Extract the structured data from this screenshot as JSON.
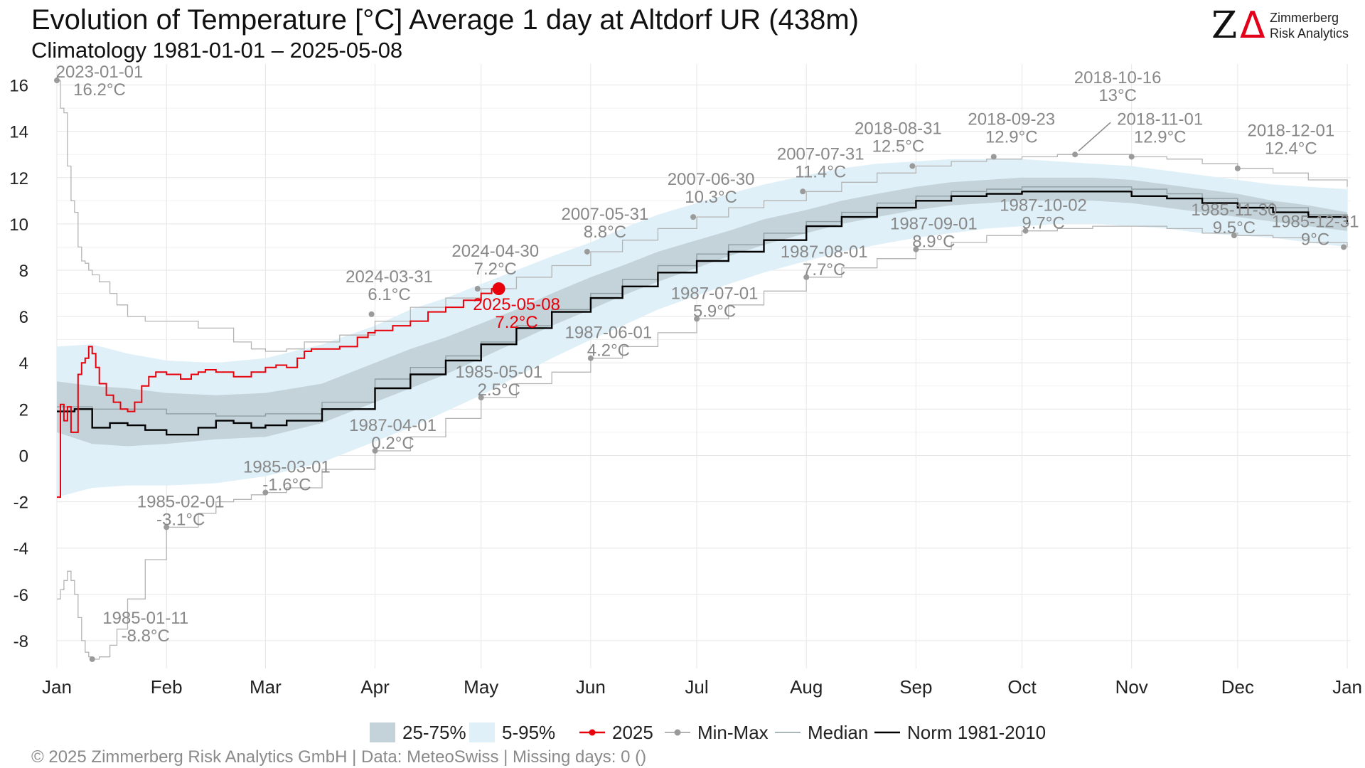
{
  "chart_data": {
    "type": "line",
    "title": "Evolution of Temperature [°C] Average 1 day at Altdorf  UR (438m)",
    "subtitle": "Climatology 1981-01-01 – 2025-05-08",
    "ylim": [
      -9.2,
      16.6
    ],
    "xlim": [
      0,
      366
    ],
    "y_ticks": [
      -8,
      -6,
      -4,
      -2,
      0,
      2,
      4,
      6,
      8,
      10,
      12,
      14,
      16
    ],
    "x_ticks": [
      {
        "label": "Jan",
        "day": 0
      },
      {
        "label": "Feb",
        "day": 31
      },
      {
        "label": "Mar",
        "day": 59
      },
      {
        "label": "Apr",
        "day": 90
      },
      {
        "label": "May",
        "day": 120
      },
      {
        "label": "Jun",
        "day": 151
      },
      {
        "label": "Jul",
        "day": 181
      },
      {
        "label": "Aug",
        "day": 212
      },
      {
        "label": "Sep",
        "day": 243
      },
      {
        "label": "Oct",
        "day": 273
      },
      {
        "label": "Nov",
        "day": 304
      },
      {
        "label": "Dec",
        "day": 334
      },
      {
        "label": "Jan",
        "day": 365
      }
    ],
    "grid": true,
    "legend_position": "bottom",
    "series": [
      {
        "name": "Norm 1981-2010",
        "x": [
          0,
          5,
          10,
          15,
          20,
          25,
          31,
          40,
          45,
          50,
          55,
          59,
          65,
          75,
          90,
          100,
          110,
          120,
          130,
          140,
          151,
          160,
          170,
          181,
          190,
          200,
          212,
          222,
          232,
          243,
          253,
          263,
          273,
          283,
          293,
          304,
          314,
          324,
          334,
          344,
          354,
          365
        ],
        "y": [
          1.9,
          2.0,
          1.2,
          1.4,
          1.3,
          1.1,
          0.9,
          1.2,
          1.5,
          1.4,
          1.2,
          1.3,
          1.5,
          2.0,
          2.9,
          3.5,
          4.1,
          4.8,
          5.5,
          6.2,
          6.8,
          7.3,
          7.9,
          8.4,
          8.8,
          9.3,
          9.9,
          10.3,
          10.7,
          11.0,
          11.2,
          11.3,
          11.4,
          11.4,
          11.4,
          11.2,
          11.1,
          10.9,
          10.7,
          10.5,
          10.3,
          10.0
        ]
      },
      {
        "name": "Median",
        "x": [
          0,
          10,
          20,
          31,
          45,
          59,
          75,
          90,
          100,
          110,
          120,
          130,
          140,
          151,
          160,
          170,
          181,
          190,
          200,
          212,
          222,
          232,
          243,
          253,
          263,
          273,
          283,
          293,
          304,
          314,
          324,
          334,
          344,
          354,
          365
        ],
        "y": [
          2.1,
          2.0,
          2.0,
          1.8,
          1.7,
          1.8,
          2.3,
          3.3,
          3.8,
          4.3,
          4.9,
          5.6,
          6.3,
          7.0,
          7.6,
          8.2,
          8.7,
          9.1,
          9.6,
          10.1,
          10.5,
          10.9,
          11.2,
          11.4,
          11.5,
          11.6,
          11.6,
          11.6,
          11.5,
          11.3,
          11.1,
          10.9,
          10.7,
          10.4,
          10.1
        ]
      },
      {
        "name": "2025",
        "x": [
          0,
          1,
          2,
          3,
          4,
          5,
          6,
          7,
          8,
          9,
          10,
          11,
          12,
          14,
          16,
          18,
          20,
          22,
          24,
          26,
          28,
          31,
          35,
          38,
          40,
          42,
          45,
          50,
          55,
          59,
          62,
          65,
          68,
          70,
          72,
          75,
          80,
          85,
          88,
          90,
          95,
          100,
          105,
          110,
          115,
          120,
          123,
          125
        ],
        "y": [
          -1.8,
          2.2,
          1.5,
          2.1,
          1.0,
          1.0,
          3.5,
          4.0,
          4.2,
          4.7,
          4.4,
          3.8,
          3.1,
          2.6,
          2.3,
          2.0,
          1.9,
          2.3,
          3.0,
          3.4,
          3.6,
          3.5,
          3.3,
          3.5,
          3.6,
          3.7,
          3.6,
          3.4,
          3.6,
          3.8,
          3.9,
          3.8,
          4.2,
          4.5,
          4.6,
          4.6,
          4.7,
          5.1,
          5.3,
          5.4,
          5.6,
          5.8,
          6.2,
          6.4,
          6.7,
          7.0,
          7.2,
          7.2
        ]
      },
      {
        "name": "Max",
        "x": [
          0,
          1,
          2,
          3,
          4,
          5,
          6,
          7,
          8,
          9,
          10,
          12,
          15,
          17,
          20,
          25,
          31,
          40,
          50,
          55,
          59,
          65,
          70,
          80,
          90,
          100,
          110,
          120,
          130,
          140,
          151,
          160,
          170,
          181,
          190,
          200,
          212,
          222,
          232,
          243,
          253,
          263,
          273,
          283,
          293,
          304,
          314,
          324,
          334,
          344,
          354,
          365
        ],
        "y": [
          16.2,
          15.0,
          14.8,
          12.5,
          11.0,
          10.5,
          9.0,
          8.4,
          8.3,
          8.0,
          7.8,
          7.5,
          7.0,
          6.5,
          6.0,
          5.8,
          5.8,
          5.5,
          4.9,
          4.6,
          4.5,
          4.6,
          4.9,
          5.2,
          5.8,
          6.4,
          6.8,
          7.2,
          7.7,
          8.2,
          8.8,
          9.3,
          9.8,
          10.3,
          10.7,
          11.0,
          11.4,
          11.8,
          12.2,
          12.5,
          12.7,
          12.8,
          12.9,
          13.0,
          13.0,
          12.9,
          12.8,
          12.6,
          12.4,
          12.2,
          11.9,
          11.6
        ]
      },
      {
        "name": "Min",
        "x": [
          0,
          1,
          2,
          3,
          4,
          5,
          6,
          7,
          8,
          9,
          10,
          12,
          15,
          17,
          20,
          25,
          31,
          40,
          45,
          50,
          55,
          59,
          65,
          75,
          90,
          100,
          110,
          120,
          130,
          140,
          151,
          160,
          170,
          181,
          190,
          200,
          212,
          222,
          232,
          243,
          253,
          263,
          273,
          283,
          293,
          304,
          314,
          324,
          334,
          344,
          354,
          365
        ],
        "y": [
          -6.2,
          -5.8,
          -5.4,
          -5.0,
          -5.4,
          -6.0,
          -7.0,
          -8.0,
          -8.5,
          -8.7,
          -8.8,
          -8.7,
          -8.2,
          -7.5,
          -6.2,
          -4.5,
          -3.1,
          -2.5,
          -2.0,
          -1.9,
          -1.7,
          -1.6,
          -1.4,
          -0.6,
          0.2,
          0.8,
          1.6,
          2.5,
          3.1,
          3.6,
          4.2,
          4.7,
          5.3,
          5.9,
          6.5,
          7.1,
          7.7,
          8.1,
          8.5,
          8.9,
          9.2,
          9.5,
          9.7,
          9.8,
          9.9,
          9.9,
          9.8,
          9.6,
          9.5,
          9.4,
          9.2,
          9.0
        ]
      }
    ],
    "bands": [
      {
        "name": "5-95%",
        "x": [
          0,
          10,
          20,
          31,
          45,
          59,
          75,
          90,
          100,
          110,
          120,
          130,
          140,
          151,
          160,
          170,
          181,
          190,
          200,
          212,
          222,
          232,
          243,
          253,
          263,
          273,
          283,
          293,
          304,
          314,
          324,
          334,
          344,
          354,
          365
        ],
        "low": [
          -1.8,
          -1.4,
          -1.3,
          -1.3,
          -1.2,
          -0.9,
          -0.3,
          0.6,
          1.2,
          1.9,
          2.6,
          3.4,
          4.2,
          5.0,
          5.6,
          6.3,
          6.9,
          7.4,
          7.9,
          8.4,
          8.8,
          9.1,
          9.4,
          9.6,
          9.8,
          9.9,
          10.0,
          10.0,
          9.9,
          9.8,
          9.6,
          9.5,
          9.4,
          9.2,
          9.0
        ],
        "high": [
          4.7,
          4.8,
          4.4,
          4.1,
          4.0,
          4.2,
          4.8,
          5.6,
          6.3,
          6.8,
          7.4,
          8.0,
          8.6,
          9.2,
          9.8,
          10.4,
          10.9,
          11.3,
          11.7,
          12.1,
          12.4,
          12.6,
          12.7,
          12.8,
          12.8,
          12.8,
          12.7,
          12.6,
          12.5,
          12.3,
          12.1,
          11.9,
          11.7,
          11.6,
          11.5
        ]
      },
      {
        "name": "25-75%",
        "x": [
          0,
          10,
          20,
          31,
          45,
          59,
          75,
          90,
          100,
          110,
          120,
          130,
          140,
          151,
          160,
          170,
          181,
          190,
          200,
          212,
          222,
          232,
          243,
          253,
          263,
          273,
          283,
          293,
          304,
          314,
          324,
          334,
          344,
          354,
          365
        ],
        "low": [
          1.0,
          0.5,
          0.4,
          0.5,
          0.7,
          0.8,
          1.4,
          2.3,
          2.9,
          3.5,
          4.2,
          4.9,
          5.6,
          6.3,
          6.9,
          7.5,
          8.1,
          8.6,
          9.1,
          9.6,
          10.0,
          10.3,
          10.6,
          10.8,
          10.9,
          11.0,
          11.0,
          11.0,
          10.9,
          10.7,
          10.5,
          10.3,
          10.1,
          9.9,
          9.7
        ],
        "high": [
          3.2,
          3.0,
          2.9,
          2.7,
          2.6,
          2.7,
          3.1,
          4.0,
          4.6,
          5.1,
          5.7,
          6.3,
          7.0,
          7.7,
          8.2,
          8.8,
          9.3,
          9.7,
          10.2,
          10.6,
          11.0,
          11.3,
          11.6,
          11.8,
          11.9,
          12.0,
          12.0,
          12.0,
          11.9,
          11.7,
          11.5,
          11.3,
          11.0,
          10.8,
          10.5
        ]
      }
    ],
    "current_point": {
      "day": 125,
      "value": 7.2,
      "label_date": "2025-05-08",
      "label_value": "7.2°C"
    },
    "annotations": [
      {
        "kind": "max",
        "day": 0,
        "value": 16.2,
        "date": "2023-01-01",
        "text": "16.2°C"
      },
      {
        "kind": "min",
        "day": 10,
        "value": -8.8,
        "date": "1985-01-11",
        "text": "-8.8°C"
      },
      {
        "kind": "min",
        "day": 31,
        "value": -3.1,
        "date": "1985-02-01",
        "text": "-3.1°C"
      },
      {
        "kind": "min",
        "day": 59,
        "value": -1.6,
        "date": "1985-03-01",
        "text": "-1.6°C"
      },
      {
        "kind": "max",
        "day": 89,
        "value": 6.1,
        "date": "2024-03-31",
        "text": "6.1°C"
      },
      {
        "kind": "min",
        "day": 90,
        "value": 0.2,
        "date": "1987-04-01",
        "text": "0.2°C"
      },
      {
        "kind": "max",
        "day": 119,
        "value": 7.2,
        "date": "2024-04-30",
        "text": "7.2°C"
      },
      {
        "kind": "min",
        "day": 120,
        "value": 2.5,
        "date": "1985-05-01",
        "text": "2.5°C"
      },
      {
        "kind": "max",
        "day": 150,
        "value": 8.8,
        "date": "2007-05-31",
        "text": "8.8°C"
      },
      {
        "kind": "min",
        "day": 151,
        "value": 4.2,
        "date": "1987-06-01",
        "text": "4.2°C"
      },
      {
        "kind": "max",
        "day": 180,
        "value": 10.3,
        "date": "2007-06-30",
        "text": "10.3°C"
      },
      {
        "kind": "min",
        "day": 181,
        "value": 5.9,
        "date": "1987-07-01",
        "text": "5.9°C"
      },
      {
        "kind": "max",
        "day": 211,
        "value": 11.4,
        "date": "2007-07-31",
        "text": "11.4°C"
      },
      {
        "kind": "min",
        "day": 212,
        "value": 7.7,
        "date": "1987-08-01",
        "text": "7.7°C"
      },
      {
        "kind": "max",
        "day": 242,
        "value": 12.5,
        "date": "2018-08-31",
        "text": "12.5°C"
      },
      {
        "kind": "min",
        "day": 243,
        "value": 8.9,
        "date": "1987-09-01",
        "text": "8.9°C"
      },
      {
        "kind": "max",
        "day": 265,
        "value": 12.9,
        "date": "2018-09-23",
        "text": "12.9°C"
      },
      {
        "kind": "min",
        "day": 274,
        "value": 9.7,
        "date": "1987-10-02",
        "text": "9.7°C"
      },
      {
        "kind": "max",
        "day": 288,
        "value": 13.0,
        "date": "2018-10-16",
        "text": "13°C"
      },
      {
        "kind": "max",
        "day": 304,
        "value": 12.9,
        "date": "2018-11-01",
        "text": "12.9°C"
      },
      {
        "kind": "min",
        "day": 333,
        "value": 9.5,
        "date": "1985-11-30",
        "text": "9.5°C"
      },
      {
        "kind": "max",
        "day": 334,
        "value": 12.4,
        "date": "2018-12-01",
        "text": "12.4°C"
      },
      {
        "kind": "min",
        "day": 364,
        "value": 9.0,
        "date": "1985-12-31",
        "text": "9°C"
      }
    ],
    "colors": {
      "band_25_75": "#c3d3d9",
      "band_5_95": "#dff0f8",
      "series_2025": "#e8000b",
      "min_max": "#b4b4b4",
      "min_max_point": "#9a9a9a",
      "annotation_text": "#888888",
      "median": "#8f9ea3",
      "norm": "#000000",
      "grid": "#e6e6e6"
    }
  },
  "logo": {
    "line1": "Zimmerberg",
    "line2": "Risk Analytics",
    "z": "Z",
    "delta": "Δ"
  },
  "legend": {
    "band_iqr": "25-75%",
    "band_90": "5-95%",
    "year": "2025",
    "minmax": "Min-Max",
    "median": "Median",
    "norm": "Norm 1981-2010"
  },
  "footer": "©  2025 Zimmerberg Risk Analytics GmbH | Data: MeteoSwiss | Missing days: 0 ()"
}
